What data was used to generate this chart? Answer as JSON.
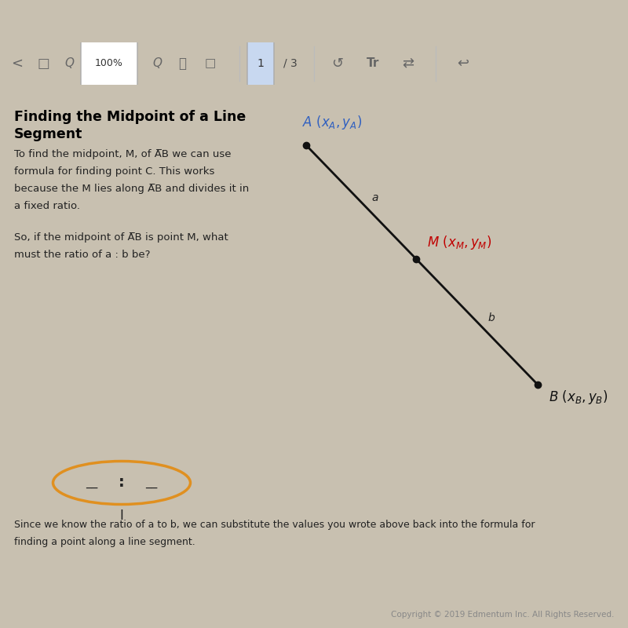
{
  "fig_w": 8.0,
  "fig_h": 8.0,
  "bg_color": "#c8c0b0",
  "tablet_top_color": "#5c3a1a",
  "toolbar_bg": "#e8e4de",
  "page_bg": "#f5f4f0",
  "title_line1": "Finding the Midpoint of a Line",
  "title_line2": "Segment",
  "body_para1": [
    "To find the midpoint, M, of A̅B we can use",
    "formula for finding point C. This works",
    "because the M lies along A̅B and divides it in",
    "a fixed ratio."
  ],
  "body_para2": [
    "So, if the midpoint of A̅B is point M, what",
    "must the ratio of a : b be?"
  ],
  "footer1": "Since we know the ratio of a to b, we can substitute the values you wrote above back into the formula for",
  "footer2": "finding a point along a line segment.",
  "copyright": "Copyright © 2019 Edmentum Inc. All Rights Reserved.",
  "point_A": [
    0.485,
    0.755
  ],
  "point_M": [
    0.645,
    0.585
  ],
  "point_B": [
    0.845,
    0.385
  ],
  "color_A": "#3060c0",
  "color_M": "#c00000",
  "color_B": "#111111",
  "line_color": "#111111",
  "ellipse_color": "#e09020",
  "toolbar_icon_color": "#666666",
  "text_color": "#222222"
}
